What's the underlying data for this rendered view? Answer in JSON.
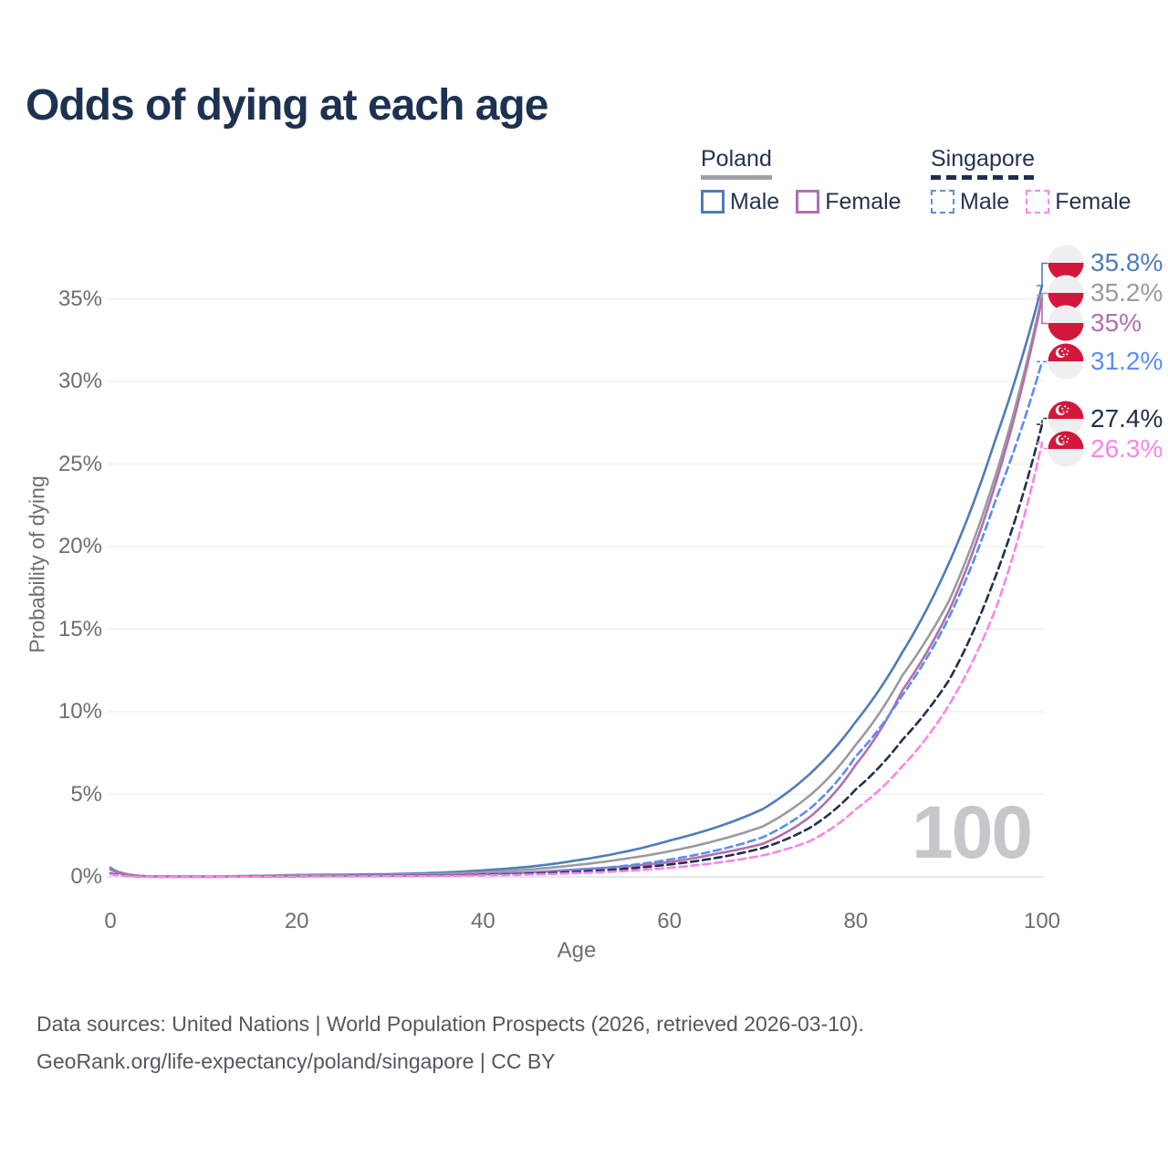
{
  "title": "Odds of dying at each age",
  "legend": {
    "groups": [
      {
        "label": "Poland",
        "line_style": "solid",
        "underline_color": "#a3a3a7",
        "items": [
          {
            "label": "Male",
            "color": "#4e7cba",
            "dashed": false
          },
          {
            "label": "Female",
            "color": "#b26fae",
            "dashed": false
          }
        ]
      },
      {
        "label": "Singapore",
        "line_style": "dashed",
        "underline_color": "#1e2f4d",
        "items": [
          {
            "label": "Male",
            "color": "#5b8df2",
            "dashed": true
          },
          {
            "label": "Female",
            "color": "#fa85e8",
            "dashed": true
          }
        ]
      }
    ]
  },
  "chart_data": {
    "type": "line",
    "title": "Odds of dying at each age",
    "xlabel": "Age",
    "ylabel": "Probability of dying",
    "xlim": [
      0,
      100
    ],
    "ylim": [
      0,
      38
    ],
    "grid": true,
    "x_ticks": [
      0,
      20,
      40,
      60,
      80,
      100
    ],
    "y_ticks_pct": [
      0,
      5,
      10,
      15,
      20,
      25,
      30,
      35
    ],
    "age_counter": "100",
    "x": [
      0,
      5,
      10,
      15,
      20,
      25,
      30,
      35,
      40,
      45,
      50,
      55,
      60,
      65,
      70,
      75,
      80,
      85,
      90,
      95,
      100
    ],
    "series": [
      {
        "name": "Poland Male",
        "country": "Poland",
        "sex": "Male",
        "flag": "poland",
        "color": "#4e7cba",
        "dashed": false,
        "end_label": "35.8%",
        "end_value": 35.8,
        "values": [
          0.55,
          0.02,
          0.02,
          0.06,
          0.12,
          0.14,
          0.17,
          0.25,
          0.4,
          0.62,
          1.0,
          1.5,
          2.2,
          3.0,
          4.1,
          6.2,
          9.4,
          13.6,
          19.0,
          26.5,
          35.8
        ]
      },
      {
        "name": "Poland (both sexes)",
        "country": "Poland",
        "sex": "Both",
        "flag": "poland",
        "color": "#9b9b9f",
        "dashed": false,
        "end_label": "35.2%",
        "end_value": 35.2,
        "values": [
          0.5,
          0.017,
          0.016,
          0.05,
          0.09,
          0.1,
          0.12,
          0.18,
          0.28,
          0.45,
          0.72,
          1.08,
          1.55,
          2.2,
          3.05,
          4.9,
          8.0,
          12.2,
          16.7,
          24.3,
          35.2
        ]
      },
      {
        "name": "Poland Female",
        "country": "Poland",
        "sex": "Female",
        "flag": "poland",
        "color": "#b26fae",
        "dashed": false,
        "end_label": "35%",
        "end_value": 35.0,
        "values": [
          0.45,
          0.015,
          0.012,
          0.03,
          0.045,
          0.05,
          0.07,
          0.1,
          0.16,
          0.28,
          0.45,
          0.62,
          0.9,
          1.4,
          2.0,
          3.6,
          6.8,
          11.3,
          16.1,
          23.8,
          35.0
        ]
      },
      {
        "name": "Singapore Male",
        "country": "Singapore",
        "sex": "Male",
        "flag": "singapore",
        "color": "#5b8df2",
        "dashed": true,
        "end_label": "31.2%",
        "end_value": 31.2,
        "values": [
          0.22,
          0.01,
          0.01,
          0.025,
          0.045,
          0.055,
          0.07,
          0.1,
          0.15,
          0.25,
          0.42,
          0.66,
          1.05,
          1.6,
          2.4,
          4.1,
          7.3,
          11.0,
          15.7,
          22.8,
          31.2
        ]
      },
      {
        "name": "Singapore (both sexes)",
        "country": "Singapore",
        "sex": "Both",
        "flag": "singapore",
        "color": "#22304a",
        "dashed": true,
        "end_label": "27.4%",
        "end_value": 27.4,
        "values": [
          0.19,
          0.009,
          0.009,
          0.02,
          0.035,
          0.045,
          0.06,
          0.08,
          0.12,
          0.19,
          0.31,
          0.48,
          0.75,
          1.15,
          1.75,
          2.95,
          5.3,
          8.3,
          11.9,
          18.2,
          27.4
        ]
      },
      {
        "name": "Singapore Female",
        "country": "Singapore",
        "sex": "Female",
        "flag": "singapore",
        "color": "#fa85e8",
        "dashed": true,
        "end_label": "26.3%",
        "end_value": 26.3,
        "values": [
          0.16,
          0.008,
          0.008,
          0.015,
          0.03,
          0.035,
          0.045,
          0.06,
          0.09,
          0.14,
          0.23,
          0.35,
          0.55,
          0.85,
          1.3,
          2.15,
          4.1,
          6.7,
          10.4,
          16.2,
          26.3
        ]
      }
    ]
  },
  "flags": {
    "poland": {
      "top_color": "#efeff1",
      "bottom_color": "#d3173c"
    },
    "singapore": {
      "top_color": "#d3173c",
      "bottom_color": "#efeff1"
    }
  },
  "footer": {
    "line1": "Data sources: United Nations | World Population Prospects (2026, retrieved 2026-03-10).",
    "line2": "GeoRank.org/life-expectancy/poland/singapore | CC BY"
  }
}
